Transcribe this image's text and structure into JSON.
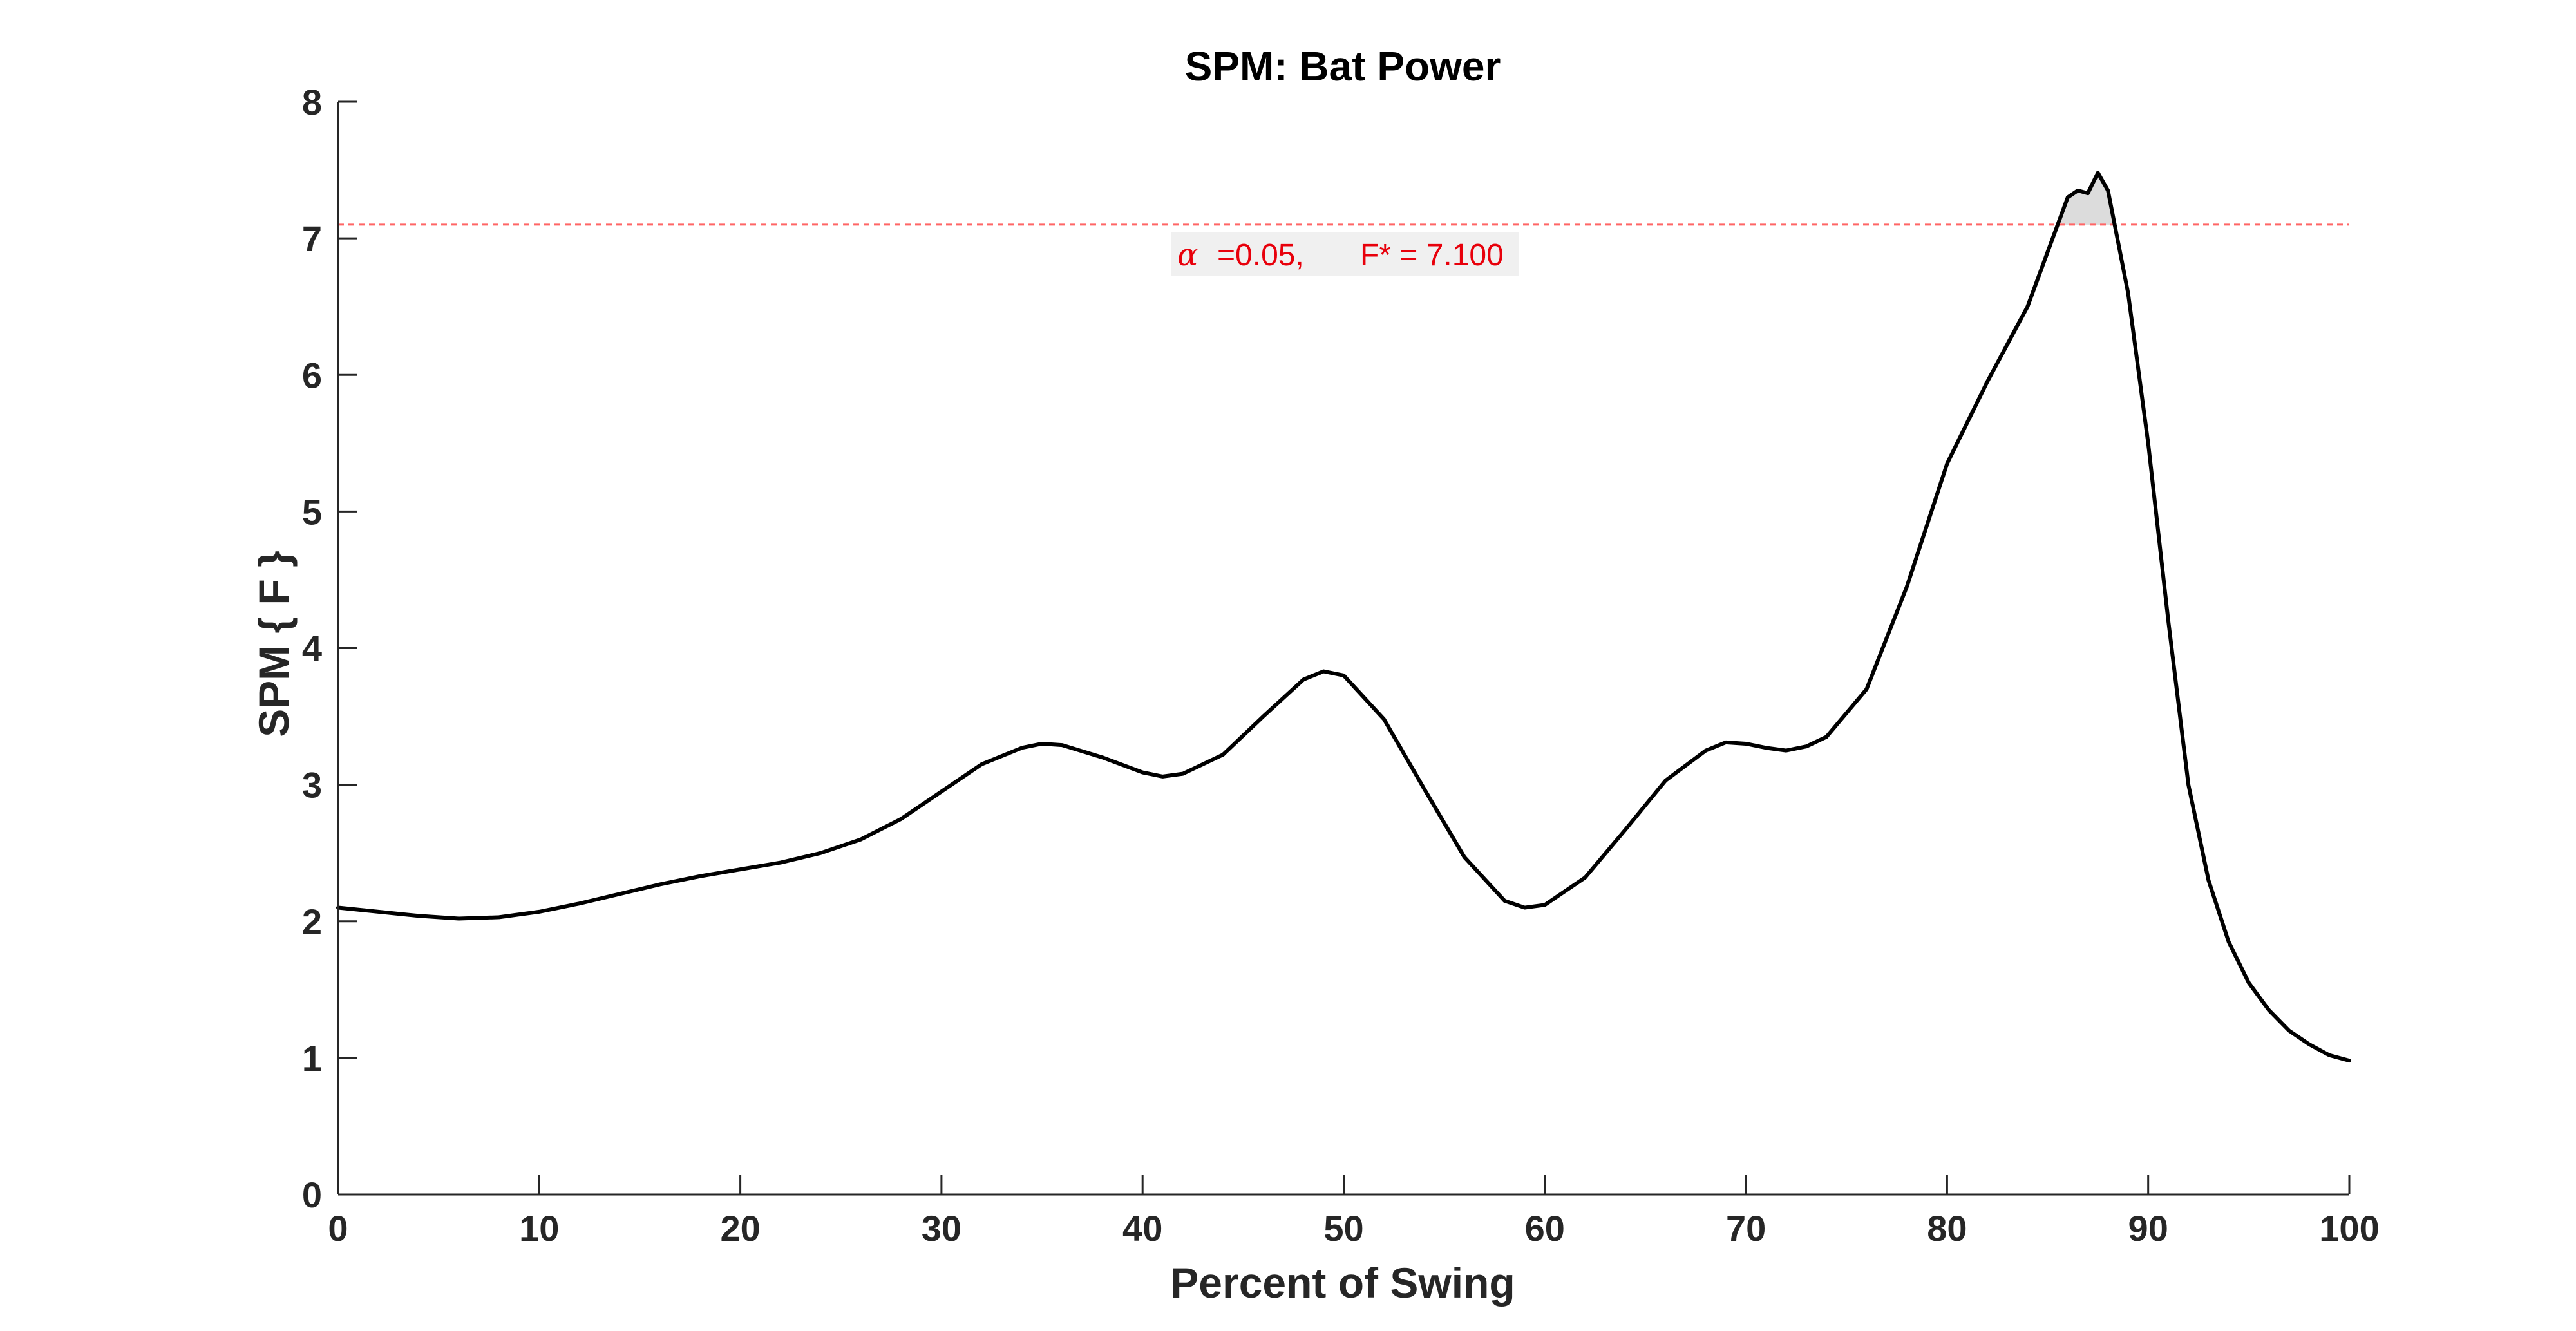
{
  "chart_data": {
    "type": "line",
    "title": "SPM: Bat Power",
    "xlabel": "Percent of Swing",
    "ylabel": "SPM { F }",
    "xlim": [
      0,
      100
    ],
    "ylim": [
      0,
      8
    ],
    "xticks": [
      0,
      10,
      20,
      30,
      40,
      50,
      60,
      70,
      80,
      90,
      100
    ],
    "yticks": [
      0,
      1,
      2,
      3,
      4,
      5,
      6,
      7,
      8
    ],
    "grid": false,
    "threshold": {
      "value": 7.1,
      "alpha_symbol": "α",
      "alpha_text": "=0.05,",
      "fstar_text": "F* = 7.100",
      "color": "#ff6666"
    },
    "line_color": "#000000",
    "cluster_fill_color": "#dcdcdc",
    "series": [
      {
        "x": [
          0,
          2,
          4,
          6,
          8,
          10,
          12,
          14,
          16,
          18,
          20,
          22,
          24,
          26,
          28,
          30,
          32,
          34,
          35,
          36,
          38,
          40,
          41,
          42,
          44,
          46,
          48,
          49,
          50,
          52,
          54,
          56,
          58,
          59,
          60,
          62,
          64,
          66,
          68,
          69,
          70,
          71,
          72,
          73,
          74,
          76,
          78,
          80,
          82,
          84,
          85,
          86,
          86.5,
          87,
          87.5,
          88,
          89,
          90,
          91,
          92,
          93,
          94,
          95,
          96,
          97,
          98,
          99,
          100
        ],
        "y": [
          2.1,
          2.07,
          2.04,
          2.02,
          2.03,
          2.07,
          2.13,
          2.2,
          2.27,
          2.33,
          2.38,
          2.43,
          2.5,
          2.6,
          2.75,
          2.95,
          3.15,
          3.27,
          3.3,
          3.29,
          3.2,
          3.09,
          3.06,
          3.08,
          3.22,
          3.5,
          3.77,
          3.83,
          3.8,
          3.48,
          2.97,
          2.47,
          2.15,
          2.1,
          2.12,
          2.32,
          2.67,
          3.03,
          3.25,
          3.31,
          3.3,
          3.27,
          3.25,
          3.28,
          3.35,
          3.7,
          4.45,
          5.35,
          5.95,
          6.5,
          6.9,
          7.3,
          7.35,
          7.33,
          7.48,
          7.35,
          6.6,
          5.5,
          4.2,
          3.0,
          2.3,
          1.85,
          1.55,
          1.35,
          1.2,
          1.1,
          1.02,
          0.98
        ]
      }
    ]
  }
}
